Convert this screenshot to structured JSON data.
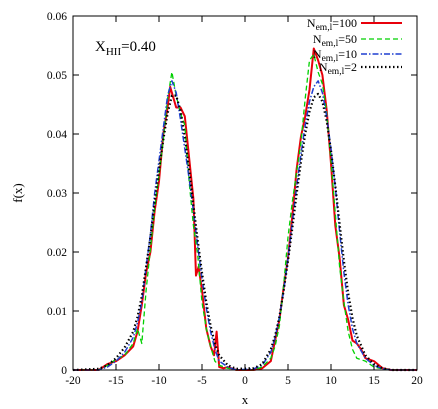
{
  "chart_data": {
    "type": "line",
    "xlabel": "x",
    "ylabel": "f(x)",
    "xlim": [
      -20,
      20
    ],
    "ylim": [
      0,
      0.06
    ],
    "xticks": [
      "-20",
      "-15",
      "-10",
      "-5",
      "0",
      "5",
      "10",
      "15",
      "20"
    ],
    "yticks": [
      "0",
      "0.01",
      "0.02",
      "0.03",
      "0.04",
      "0.05",
      "0.06"
    ],
    "annotation": {
      "base": "X",
      "sub": "HII",
      "rest": "=0.40"
    },
    "legend_position": "top-right",
    "grid": false,
    "series": [
      {
        "name": "N_em,l=100",
        "label": {
          "base": "N",
          "sub": "em,l",
          "rest": "=100"
        },
        "color": "#e8000b",
        "style": "solid",
        "points": [
          [
            -20,
            0
          ],
          [
            -17,
            0
          ],
          [
            -16,
            0.001
          ],
          [
            -15,
            0.0015
          ],
          [
            -14,
            0.0025
          ],
          [
            -13,
            0.004
          ],
          [
            -12.5,
            0.0065
          ],
          [
            -12,
            0.011
          ],
          [
            -11.5,
            0.0165
          ],
          [
            -11,
            0.02
          ],
          [
            -10.5,
            0.027
          ],
          [
            -10,
            0.032
          ],
          [
            -9.5,
            0.04
          ],
          [
            -9,
            0.0445
          ],
          [
            -8.7,
            0.048
          ],
          [
            -8.3,
            0.046
          ],
          [
            -8,
            0.0445
          ],
          [
            -7.5,
            0.0445
          ],
          [
            -7,
            0.043
          ],
          [
            -6.5,
            0.036
          ],
          [
            -6,
            0.029
          ],
          [
            -5.7,
            0.016
          ],
          [
            -5.4,
            0.0175
          ],
          [
            -5,
            0.0135
          ],
          [
            -4.5,
            0.007
          ],
          [
            -4,
            0.004
          ],
          [
            -3.6,
            0.0025
          ],
          [
            -3.3,
            0.0065
          ],
          [
            -3,
            0.0005
          ],
          [
            -2.5,
            0.0003
          ],
          [
            -2,
            0.0005
          ],
          [
            -1,
            0
          ],
          [
            1,
            0
          ],
          [
            2,
            0.0003
          ],
          [
            3,
            0.0015
          ],
          [
            3.5,
            0.005
          ],
          [
            4,
            0.0085
          ],
          [
            4.5,
            0.014
          ],
          [
            5,
            0.019
          ],
          [
            5.5,
            0.026
          ],
          [
            6,
            0.034
          ],
          [
            6.5,
            0.0395
          ],
          [
            7,
            0.043
          ],
          [
            7.5,
            0.0475
          ],
          [
            8,
            0.0545
          ],
          [
            8.5,
            0.0525
          ],
          [
            9,
            0.05
          ],
          [
            9.5,
            0.044
          ],
          [
            10,
            0.035
          ],
          [
            10.5,
            0.0245
          ],
          [
            11,
            0.019
          ],
          [
            11.5,
            0.011
          ],
          [
            12,
            0.0085
          ],
          [
            12.5,
            0.005
          ],
          [
            13,
            0.0045
          ],
          [
            13.5,
            0.0035
          ],
          [
            14,
            0.002
          ],
          [
            15,
            0.0015
          ],
          [
            16,
            0.0003
          ],
          [
            17,
            0
          ],
          [
            20,
            0
          ]
        ]
      },
      {
        "name": "N_em,l=50",
        "label": {
          "base": "N",
          "sub": "em,l",
          "rest": "=50"
        },
        "color": "#00d000",
        "style": "dashed",
        "points": [
          [
            -20,
            0
          ],
          [
            -17,
            0
          ],
          [
            -16,
            0.0008
          ],
          [
            -15,
            0.0018
          ],
          [
            -14,
            0.0025
          ],
          [
            -13,
            0.0045
          ],
          [
            -12.5,
            0.007
          ],
          [
            -12,
            0.0045
          ],
          [
            -11.5,
            0.0135
          ],
          [
            -11,
            0.0205
          ],
          [
            -10.5,
            0.0275
          ],
          [
            -10,
            0.033
          ],
          [
            -9.5,
            0.039
          ],
          [
            -9,
            0.046
          ],
          [
            -8.5,
            0.0505
          ],
          [
            -8,
            0.0465
          ],
          [
            -7.5,
            0.0435
          ],
          [
            -7,
            0.0415
          ],
          [
            -6.5,
            0.032
          ],
          [
            -6,
            0.0245
          ],
          [
            -5.5,
            0.0195
          ],
          [
            -5,
            0.0115
          ],
          [
            -4.5,
            0.007
          ],
          [
            -4,
            0.004
          ],
          [
            -3.5,
            0.0015
          ],
          [
            -3,
            0.0008
          ],
          [
            -2,
            0.0003
          ],
          [
            -1,
            0
          ],
          [
            1,
            0
          ],
          [
            2,
            0.0005
          ],
          [
            3,
            0.002
          ],
          [
            3.5,
            0.004
          ],
          [
            4,
            0.0075
          ],
          [
            4.5,
            0.0145
          ],
          [
            5,
            0.0225
          ],
          [
            5.5,
            0.0285
          ],
          [
            6,
            0.0335
          ],
          [
            6.5,
            0.0385
          ],
          [
            7,
            0.046
          ],
          [
            7.5,
            0.0525
          ],
          [
            8,
            0.0535
          ],
          [
            8.5,
            0.0505
          ],
          [
            9,
            0.0485
          ],
          [
            9.5,
            0.0435
          ],
          [
            10,
            0.0355
          ],
          [
            10.5,
            0.0265
          ],
          [
            11,
            0.0175
          ],
          [
            11.5,
            0.0115
          ],
          [
            12,
            0.0065
          ],
          [
            12.5,
            0.0035
          ],
          [
            13,
            0.002
          ],
          [
            14,
            0.0015
          ],
          [
            15,
            0.0005
          ],
          [
            16,
            0.0002
          ],
          [
            17,
            0
          ],
          [
            20,
            0
          ]
        ]
      },
      {
        "name": "N_em,l=10",
        "label": {
          "base": "N",
          "sub": "em,l",
          "rest": "=10"
        },
        "color": "#1f3fd0",
        "style": "dashdot",
        "points": [
          [
            -20,
            0
          ],
          [
            -17,
            0
          ],
          [
            -16,
            0.0005
          ],
          [
            -15,
            0.0015
          ],
          [
            -14,
            0.003
          ],
          [
            -13,
            0.0055
          ],
          [
            -12.5,
            0.008
          ],
          [
            -12,
            0.0115
          ],
          [
            -11.5,
            0.0175
          ],
          [
            -11,
            0.023
          ],
          [
            -10.5,
            0.03
          ],
          [
            -10,
            0.0355
          ],
          [
            -9.5,
            0.041
          ],
          [
            -9,
            0.0465
          ],
          [
            -8.5,
            0.049
          ],
          [
            -8,
            0.047
          ],
          [
            -7.5,
            0.0425
          ],
          [
            -7,
            0.0375
          ],
          [
            -6.5,
            0.0325
          ],
          [
            -6,
            0.027
          ],
          [
            -5.5,
            0.021
          ],
          [
            -5,
            0.0155
          ],
          [
            -4.5,
            0.0105
          ],
          [
            -4,
            0.0065
          ],
          [
            -3.5,
            0.0035
          ],
          [
            -3,
            0.0015
          ],
          [
            -2,
            0.0005
          ],
          [
            -1,
            0
          ],
          [
            1,
            0.0002
          ],
          [
            2,
            0.0008
          ],
          [
            3,
            0.003
          ],
          [
            3.5,
            0.0055
          ],
          [
            4,
            0.009
          ],
          [
            4.5,
            0.0135
          ],
          [
            5,
            0.019
          ],
          [
            5.5,
            0.025
          ],
          [
            6,
            0.031
          ],
          [
            6.5,
            0.0365
          ],
          [
            7,
            0.0415
          ],
          [
            7.5,
            0.0455
          ],
          [
            8,
            0.048
          ],
          [
            8.5,
            0.049
          ],
          [
            9,
            0.047
          ],
          [
            9.5,
            0.043
          ],
          [
            10,
            0.0375
          ],
          [
            10.5,
            0.031
          ],
          [
            11,
            0.0235
          ],
          [
            11.5,
            0.0165
          ],
          [
            12,
            0.011
          ],
          [
            12.5,
            0.007
          ],
          [
            13,
            0.0045
          ],
          [
            14,
            0.002
          ],
          [
            15,
            0.0008
          ],
          [
            16,
            0.0002
          ],
          [
            17,
            0
          ],
          [
            20,
            0
          ]
        ]
      },
      {
        "name": "N_em,l=2",
        "label": {
          "base": "N",
          "sub": "em,l",
          "rest": "=2"
        },
        "color": "#000000",
        "style": "dotted",
        "points": [
          [
            -20,
            0
          ],
          [
            -17,
            0.0002
          ],
          [
            -16,
            0.0008
          ],
          [
            -15,
            0.002
          ],
          [
            -14,
            0.0038
          ],
          [
            -13,
            0.0065
          ],
          [
            -12.5,
            0.009
          ],
          [
            -12,
            0.0125
          ],
          [
            -11.5,
            0.0175
          ],
          [
            -11,
            0.0225
          ],
          [
            -10.5,
            0.0285
          ],
          [
            -10,
            0.034
          ],
          [
            -9.5,
            0.039
          ],
          [
            -9,
            0.0435
          ],
          [
            -8.5,
            0.0465
          ],
          [
            -8,
            0.0465
          ],
          [
            -7.5,
            0.044
          ],
          [
            -7,
            0.0395
          ],
          [
            -6.5,
            0.034
          ],
          [
            -6,
            0.028
          ],
          [
            -5.5,
            0.022
          ],
          [
            -5,
            0.0165
          ],
          [
            -4.5,
            0.0115
          ],
          [
            -4,
            0.0075
          ],
          [
            -3.5,
            0.0045
          ],
          [
            -3,
            0.0025
          ],
          [
            -2,
            0.0008
          ],
          [
            -1,
            0.0002
          ],
          [
            1,
            0.0003
          ],
          [
            2,
            0.001
          ],
          [
            3,
            0.0035
          ],
          [
            3.5,
            0.0058
          ],
          [
            4,
            0.009
          ],
          [
            4.5,
            0.0135
          ],
          [
            5,
            0.0185
          ],
          [
            5.5,
            0.024
          ],
          [
            6,
            0.0298
          ],
          [
            6.5,
            0.0352
          ],
          [
            7,
            0.04
          ],
          [
            7.5,
            0.0438
          ],
          [
            8,
            0.0462
          ],
          [
            8.5,
            0.0468
          ],
          [
            9,
            0.0455
          ],
          [
            9.5,
            0.0422
          ],
          [
            10,
            0.0372
          ],
          [
            10.5,
            0.0312
          ],
          [
            11,
            0.0248
          ],
          [
            11.5,
            0.0185
          ],
          [
            12,
            0.013
          ],
          [
            12.5,
            0.0088
          ],
          [
            13,
            0.0058
          ],
          [
            14,
            0.0025
          ],
          [
            15,
            0.001
          ],
          [
            16,
            0.0003
          ],
          [
            17,
            0
          ],
          [
            20,
            0
          ]
        ]
      }
    ]
  }
}
